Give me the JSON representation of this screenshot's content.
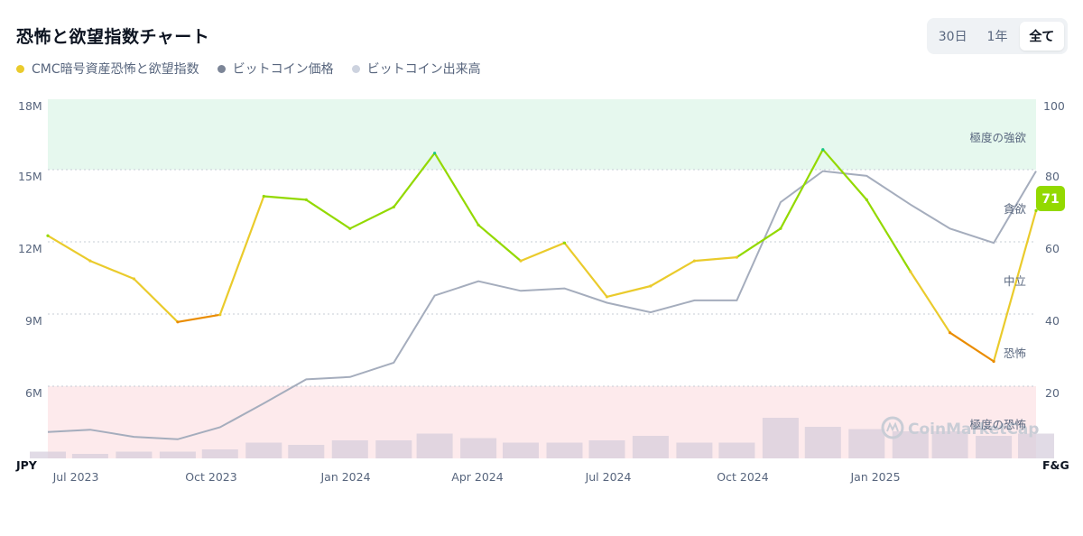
{
  "header": {
    "title": "恐怖と欲望指数チャート"
  },
  "range": {
    "options": [
      "30日",
      "1年",
      "全て"
    ],
    "selected": "全て"
  },
  "legend": [
    {
      "label": "CMC暗号資産恐怖と欲望指数",
      "color": "#eacb2c"
    },
    {
      "label": "ビットコイン価格",
      "color": "#7c8597"
    },
    {
      "label": "ビットコイン出来高",
      "color": "#cdd3df"
    }
  ],
  "watermark": "CoinMarketCap",
  "chart_data": {
    "type": "line",
    "x_axis": {
      "unit_label": "",
      "ticks": [
        "Jul 2023",
        "Oct 2023",
        "Jan 2024",
        "Apr 2024",
        "Jul 2024",
        "Oct 2024",
        "Jan 2025"
      ]
    },
    "y_left": {
      "unit_label": "JPY",
      "ticks": [
        "18M",
        "15M",
        "12M",
        "9M",
        "6M"
      ],
      "range_m": [
        3,
        18
      ]
    },
    "y_right": {
      "unit_label": "F&G",
      "ticks": [
        "100",
        "80",
        "60",
        "40",
        "20"
      ],
      "range": [
        0,
        100
      ]
    },
    "zones": [
      {
        "name": "極度の強欲",
        "from": 80,
        "to": 100,
        "color": "#e6f8ee"
      },
      {
        "name": "貪欲",
        "from": 60,
        "to": 80,
        "color": ""
      },
      {
        "name": "中立",
        "from": 40,
        "to": 60,
        "color": ""
      },
      {
        "name": "恐怖",
        "from": 20,
        "to": 40,
        "color": ""
      },
      {
        "name": "極度の恐怖",
        "from": 0,
        "to": 20,
        "color": "#fdeaec"
      }
    ],
    "current_value": "71",
    "colors": {
      "extreme_greed": "#16c784",
      "greed": "#93d900",
      "neutral": "#eacb2c",
      "fear": "#ea8c00",
      "extreme_fear": "#ea3943",
      "price": "#a5adbd",
      "volume": "#d4ccdc"
    },
    "x_dates": [
      "2023-06-01",
      "2023-07-01",
      "2023-08-01",
      "2023-09-01",
      "2023-10-01",
      "2023-11-01",
      "2023-12-01",
      "2024-01-01",
      "2024-02-01",
      "2024-03-01",
      "2024-04-01",
      "2024-05-01",
      "2024-06-01",
      "2024-07-01",
      "2024-08-01",
      "2024-09-01",
      "2024-10-01",
      "2024-11-01",
      "2024-12-01",
      "2025-01-01",
      "2025-02-01",
      "2025-03-01",
      "2025-04-01",
      "2025-05-01"
    ],
    "series": [
      {
        "name": "CMC暗号資産恐怖と欲望指数",
        "axis": "right",
        "values": [
          62,
          55,
          50,
          38,
          40,
          73,
          72,
          64,
          70,
          85,
          65,
          55,
          60,
          45,
          48,
          55,
          56,
          64,
          86,
          72,
          52,
          35,
          27,
          69
        ]
      },
      {
        "name": "ビットコイン価格",
        "axis": "left",
        "unit": "M JPY",
        "values": [
          4.1,
          4.2,
          3.9,
          3.8,
          4.3,
          5.3,
          6.3,
          6.4,
          7.0,
          9.8,
          10.4,
          10.0,
          10.1,
          9.5,
          9.1,
          9.6,
          9.6,
          13.7,
          15.0,
          14.8,
          13.6,
          12.6,
          12.0,
          15.0
        ]
      },
      {
        "name": "ビットコイン出来高",
        "axis": "left",
        "unit": "relative",
        "values": [
          0.15,
          0.1,
          0.15,
          0.15,
          0.2,
          0.35,
          0.3,
          0.4,
          0.4,
          0.55,
          0.45,
          0.35,
          0.35,
          0.4,
          0.5,
          0.35,
          0.35,
          0.9,
          0.7,
          0.65,
          0.6,
          0.6,
          0.5,
          0.55
        ]
      }
    ]
  }
}
